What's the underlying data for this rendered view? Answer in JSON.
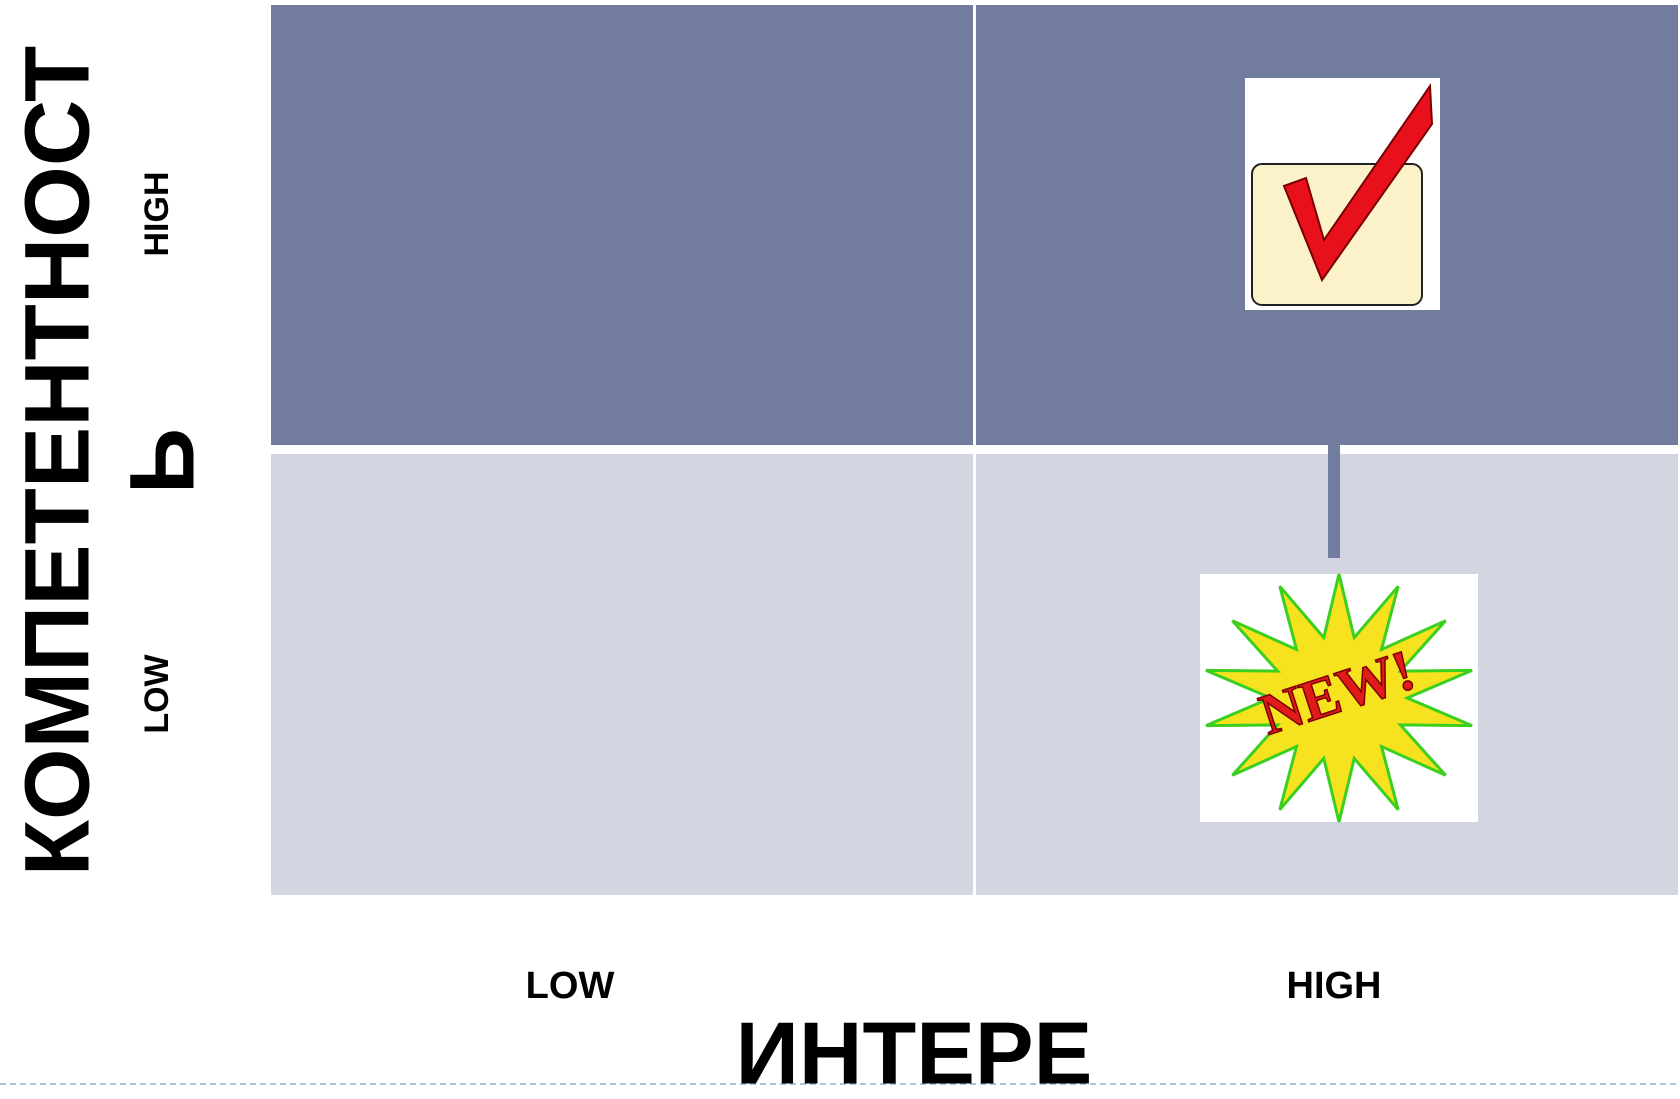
{
  "y_axis": {
    "title": [
      "КОМПЕТЕНТНОСТ",
      "Ь"
    ],
    "labels": [
      "HIGH",
      "LOW"
    ]
  },
  "x_axis": {
    "title": "ИНТЕРЕ",
    "labels": [
      "LOW",
      "HIGH"
    ]
  },
  "badge": {
    "text": "NEW!"
  }
}
